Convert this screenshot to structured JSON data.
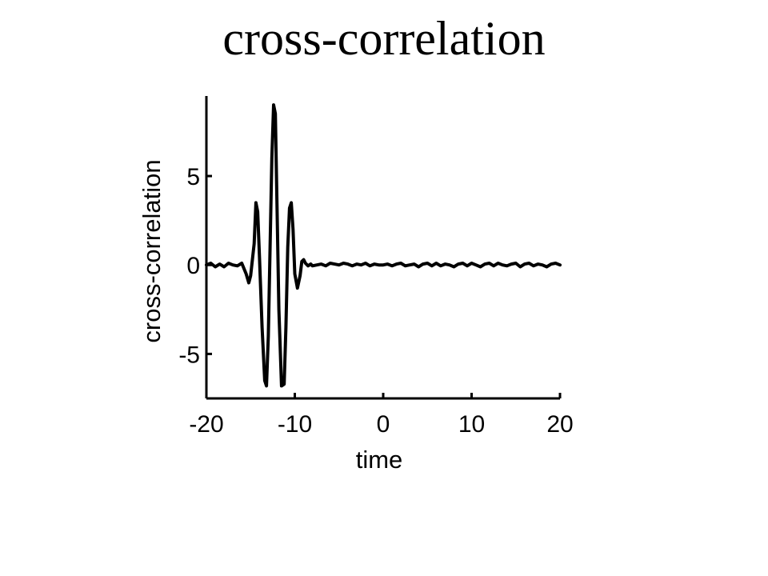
{
  "slide": {
    "title": "cross-correlation"
  },
  "chart_data": {
    "type": "line",
    "title": "cross-correlation",
    "xlabel": "time",
    "ylabel": "cross-correlation",
    "xlim": [
      -20,
      20
    ],
    "ylim": [
      -7.5,
      9.5
    ],
    "xticks": [
      -20,
      -10,
      0,
      10,
      20
    ],
    "yticks": [
      -5,
      0,
      5
    ],
    "xtick_labels": [
      "-20",
      "-10",
      "0",
      "10",
      "20"
    ],
    "ytick_labels": [
      "-5",
      "0",
      "5"
    ],
    "grid": false,
    "color": "#000000",
    "series": [
      {
        "x": [
          -20,
          -19.5,
          -19,
          -18.5,
          -18,
          -17.5,
          -17,
          -16.5,
          -16,
          -15.5,
          -15.2,
          -15,
          -14.6,
          -14.4,
          -14.2,
          -14,
          -13.7,
          -13.4,
          -13.2,
          -13,
          -12.8,
          -12.6,
          -12.4,
          -12.2,
          -12,
          -11.8,
          -11.5,
          -11.2,
          -11,
          -10.8,
          -10.6,
          -10.4,
          -10.2,
          -10,
          -9.7,
          -9.4,
          -9.2,
          -9,
          -8.8,
          -8.5,
          -8.2,
          -8,
          -7.5,
          -7,
          -6.5,
          -6,
          -5.5,
          -5,
          -4.5,
          -4,
          -3.5,
          -3,
          -2.5,
          -2,
          -1.5,
          -1,
          -0.5,
          0,
          0.5,
          1,
          1.5,
          2,
          2.5,
          3,
          3.5,
          4,
          4.5,
          5,
          5.5,
          6,
          6.5,
          7,
          7.5,
          8,
          8.5,
          9,
          9.5,
          10,
          10.5,
          11,
          11.5,
          12,
          12.5,
          13,
          13.5,
          14,
          14.5,
          15,
          15.5,
          16,
          16.5,
          17,
          17.5,
          18,
          18.5,
          19,
          19.5,
          20
        ],
        "y": [
          0,
          0.1,
          -0.1,
          0.05,
          -0.1,
          0.1,
          0,
          -0.05,
          0.1,
          -0.5,
          -1.0,
          -0.6,
          1.2,
          3.5,
          3.0,
          0.5,
          -3.5,
          -6.5,
          -6.8,
          -4.0,
          1.0,
          6.0,
          9.0,
          8.5,
          3.0,
          -2.5,
          -6.8,
          -6.7,
          -3.5,
          1.0,
          3.2,
          3.5,
          2.0,
          -0.5,
          -1.3,
          -0.6,
          0.2,
          0.3,
          0.1,
          -0.05,
          0.05,
          -0.05,
          0,
          0.05,
          -0.05,
          0.1,
          0.05,
          0,
          0.1,
          0.05,
          -0.05,
          0.05,
          0,
          0.1,
          -0.05,
          0.05,
          0,
          0,
          0.05,
          -0.05,
          0.05,
          0.1,
          -0.05,
          0,
          0.05,
          -0.1,
          0.05,
          0.1,
          -0.05,
          0.1,
          -0.05,
          0.05,
          0,
          -0.1,
          0.05,
          0.1,
          -0.05,
          0.1,
          0,
          -0.1,
          0.05,
          0.1,
          -0.05,
          0.1,
          0,
          -0.05,
          0.05,
          0.1,
          -0.1,
          0.05,
          0.1,
          -0.05,
          0.05,
          0,
          -0.1,
          0.05,
          0.1,
          0
        ]
      }
    ]
  }
}
